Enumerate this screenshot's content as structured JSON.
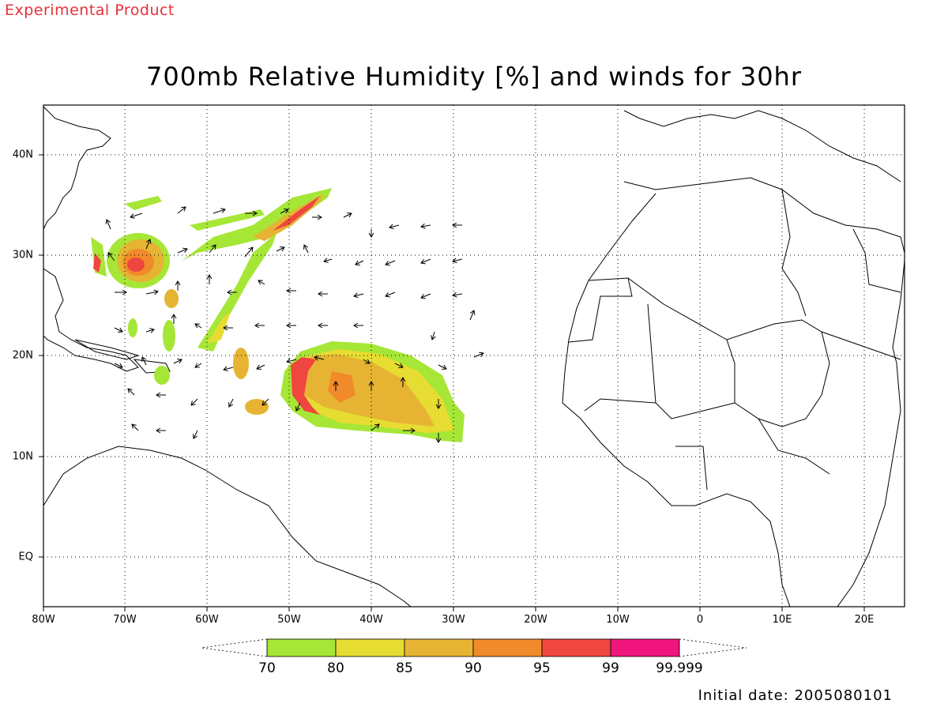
{
  "header": {
    "product_badge": "Experimental Product",
    "title": "700mb Relative Humidity [%] and winds for 30hr"
  },
  "map": {
    "region": "Tropical Atlantic, 80W–25E, 5S–45N",
    "lon_ticks": [
      "80W",
      "70W",
      "60W",
      "50W",
      "40W",
      "30W",
      "20W",
      "10W",
      "0",
      "10E",
      "20E"
    ],
    "lat_ticks": [
      "40N",
      "30N",
      "20N",
      "10N",
      "EQ"
    ],
    "grid": true,
    "features": [
      {
        "name": "storm-system-west",
        "center_lon": -69,
        "center_lat": 29
      },
      {
        "name": "storm-system-east",
        "center_lon": -42,
        "center_lat": 17
      }
    ]
  },
  "colorbar": {
    "labels": [
      "70",
      "80",
      "85",
      "90",
      "95",
      "99",
      "99.999"
    ],
    "colors": [
      "#a6e636",
      "#e6dc32",
      "#e6b432",
      "#f08a2a",
      "#f04640",
      "#f0147d"
    ]
  },
  "footer": {
    "initial_date": "Initial date: 2005080101"
  }
}
